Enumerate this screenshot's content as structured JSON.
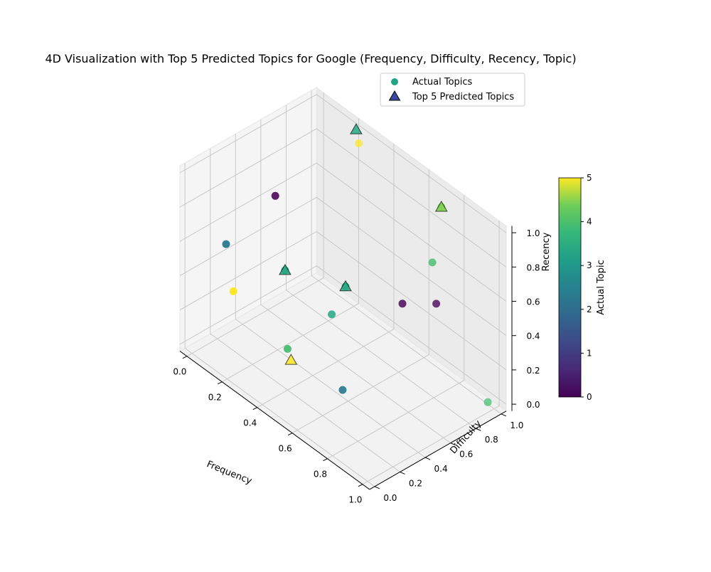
{
  "chart_data": {
    "type": "scatter",
    "title": "4D Visualization with Top 5 Predicted Topics for Google (Frequency, Difficulty, Recency, Topic)",
    "xlabel": "Frequency",
    "ylabel": "Difficulty",
    "zlabel": "Recency",
    "xlim": [
      0,
      1
    ],
    "ylim": [
      0,
      1
    ],
    "zlim": [
      0,
      1
    ],
    "x_ticks": [
      "0.0",
      "0.2",
      "0.4",
      "0.6",
      "0.8",
      "1.0"
    ],
    "y_ticks": [
      "0.0",
      "0.2",
      "0.4",
      "0.6",
      "0.8",
      "1.0"
    ],
    "z_ticks": [
      "0.0",
      "0.2",
      "0.4",
      "0.6",
      "0.8",
      "1.0"
    ],
    "grid": true,
    "legend_position": "top-right",
    "legend": [
      "Actual Topics",
      "Top 5 Predicted Topics"
    ],
    "colorbar": {
      "label": "Actual Topic",
      "ticks": [
        "0",
        "1",
        "2",
        "3",
        "4",
        "5"
      ],
      "range": [
        0,
        5
      ],
      "colormap": "viridis"
    },
    "series": [
      {
        "name": "Actual Topics",
        "marker": "circle",
        "points": [
          {
            "frequency": 0.05,
            "difficulty": 0.2,
            "recency": 0.55,
            "topic": 2
          },
          {
            "frequency": 0.15,
            "difficulty": 0.45,
            "recency": 0.8,
            "topic": 0
          },
          {
            "frequency": 0.2,
            "difficulty": 0.05,
            "recency": 0.45,
            "topic": 5
          },
          {
            "frequency": 0.28,
            "difficulty": 0.93,
            "recency": 1.0,
            "topic": 5
          },
          {
            "frequency": 0.35,
            "difficulty": 0.25,
            "recency": 0.6,
            "topic": 3
          },
          {
            "frequency": 0.4,
            "difficulty": 0.2,
            "recency": 0.2,
            "topic": 3.5
          },
          {
            "frequency": 0.45,
            "difficulty": 0.48,
            "recency": 0.32,
            "topic": 3
          },
          {
            "frequency": 0.55,
            "difficulty": 0.45,
            "recency": 0.57,
            "topic": 3
          },
          {
            "frequency": 0.62,
            "difficulty": 0.33,
            "recency": 0.07,
            "topic": 2
          },
          {
            "frequency": 0.73,
            "difficulty": 0.65,
            "recency": 0.52,
            "topic": 0
          },
          {
            "frequency": 0.8,
            "difficulty": 0.82,
            "recency": 0.5,
            "topic": 0
          },
          {
            "frequency": 0.85,
            "difficulty": 0.72,
            "recency": 0.82,
            "topic": 3.5
          },
          {
            "frequency": 0.75,
            "difficulty": 0.93,
            "recency": 0.98,
            "topic": 4
          },
          {
            "frequency": 1.0,
            "difficulty": 0.95,
            "recency": 0.02,
            "topic": 3.5
          }
        ]
      },
      {
        "name": "Top 5 Predicted Topics",
        "marker": "triangle",
        "points": [
          {
            "frequency": 0.25,
            "difficulty": 0.95,
            "recency": 1.05,
            "topic": 3
          },
          {
            "frequency": 0.35,
            "difficulty": 0.25,
            "recency": 0.6,
            "topic": 3
          },
          {
            "frequency": 0.42,
            "difficulty": 0.2,
            "recency": 0.15,
            "topic": 5
          },
          {
            "frequency": 0.55,
            "difficulty": 0.45,
            "recency": 0.57,
            "topic": 3
          },
          {
            "frequency": 0.75,
            "difficulty": 0.93,
            "recency": 0.98,
            "topic": 4
          }
        ]
      }
    ]
  }
}
